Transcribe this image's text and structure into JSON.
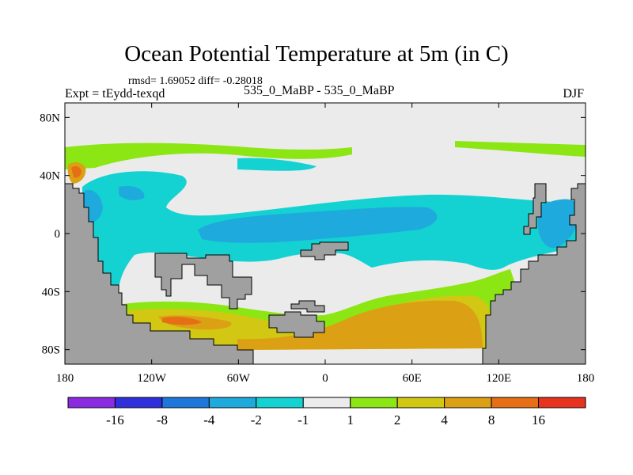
{
  "chart_data": {
    "type": "heatmap",
    "title": "Ocean Potential Temperature at 5m (in C)",
    "stats_text": "rmsd= 1.69052 diff= -0.28018",
    "left_label": "Expt = tEydd-texqd",
    "center_label": "535_0_MaBP - 535_0_MaBP",
    "right_label": "DJF",
    "x_ticks": [
      {
        "value": -180,
        "label": "180"
      },
      {
        "value": -120,
        "label": "120W"
      },
      {
        "value": -60,
        "label": "60W"
      },
      {
        "value": 0,
        "label": "0"
      },
      {
        "value": 60,
        "label": "60E"
      },
      {
        "value": 120,
        "label": "120E"
      },
      {
        "value": 180,
        "label": "180"
      }
    ],
    "y_ticks": [
      {
        "value": 80,
        "label": "80N"
      },
      {
        "value": 40,
        "label": "40N"
      },
      {
        "value": 0,
        "label": "0"
      },
      {
        "value": -40,
        "label": "40S"
      },
      {
        "value": -80,
        "label": "80S"
      }
    ],
    "xlim": [
      -180,
      180
    ],
    "ylim": [
      -90,
      90
    ],
    "colorbar": {
      "colors": [
        "#8a2be2",
        "#2f2fdc",
        "#1e78dc",
        "#1eaadc",
        "#14d2d2",
        "#ebebeb",
        "#8ce614",
        "#d2c814",
        "#dca014",
        "#e66e14",
        "#e6321e"
      ],
      "labels": [
        "-16",
        "-8",
        "-4",
        "-2",
        "-1",
        "1",
        "2",
        "4",
        "8",
        "16"
      ]
    }
  }
}
